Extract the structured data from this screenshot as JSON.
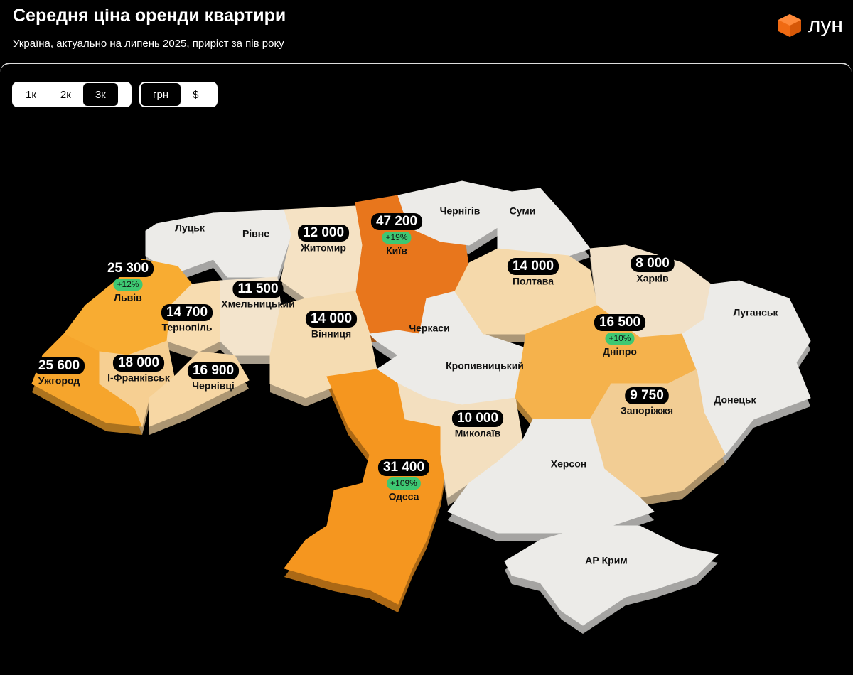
{
  "header": {
    "title": "Середня ціна оренди квартири",
    "subtitle": "Україна, актуально на липень 2025, приріст за пів року",
    "logo": "лун"
  },
  "tabs": {
    "rooms": [
      "1к",
      "2к",
      "3к"
    ],
    "rooms_active": 2,
    "currency": [
      "грн",
      "$"
    ],
    "currency_active": 0
  },
  "regions": [
    {
      "name": "Луцьк",
      "color": "#ecebe8"
    },
    {
      "name": "Рівне",
      "color": "#ecebe8"
    },
    {
      "name": "Житомир",
      "price": "12 000",
      "color": "#f5e2c4"
    },
    {
      "name": "Київ",
      "price": "47 200",
      "growth": "+19%",
      "color": "#e8761c"
    },
    {
      "name": "Чернігів",
      "color": "#ecebe8"
    },
    {
      "name": "Суми",
      "color": "#ecebe8"
    },
    {
      "name": "Львів",
      "price": "25 300",
      "growth": "+12%",
      "color": "#f8ac32"
    },
    {
      "name": "Ужгород",
      "price": "25 600",
      "color": "#f6a52c"
    },
    {
      "name": "Тернопіль",
      "price": "14 700",
      "color": "#f7dcb0"
    },
    {
      "name": "І-Франківськ",
      "price": "18 000",
      "color": "#f6cf92"
    },
    {
      "name": "Чернівці",
      "price": "16 900",
      "color": "#f7d7a4"
    },
    {
      "name": "Хмельницький",
      "price": "11 500",
      "color": "#f3e4cc"
    },
    {
      "name": "Вінниця",
      "price": "14 000",
      "color": "#f5dcb2"
    },
    {
      "name": "Черкаси",
      "color": "#ecebe8"
    },
    {
      "name": "Кропивницький",
      "color": "#ecebe8"
    },
    {
      "name": "Одеса",
      "price": "31 400",
      "growth": "+109%",
      "color": "#f5961f"
    },
    {
      "name": "Миколаїв",
      "price": "10 000",
      "color": "#f3dfbf"
    },
    {
      "name": "Полтава",
      "price": "14 000",
      "color": "#f5d9ab"
    },
    {
      "name": "Харків",
      "price": "8 000",
      "color": "#f2e1c8"
    },
    {
      "name": "Луганськ",
      "color": "#ecebe8"
    },
    {
      "name": "Дніпро",
      "price": "16 500",
      "growth": "+10%",
      "color": "#f5b24c"
    },
    {
      "name": "Донецьк",
      "color": "#ecebe8"
    },
    {
      "name": "Запоріжжя",
      "price": "9 750",
      "color": "#f2cd94"
    },
    {
      "name": "Херсон",
      "color": "#ecebe8"
    },
    {
      "name": "АР Крим",
      "color": "#ecebe8"
    }
  ]
}
